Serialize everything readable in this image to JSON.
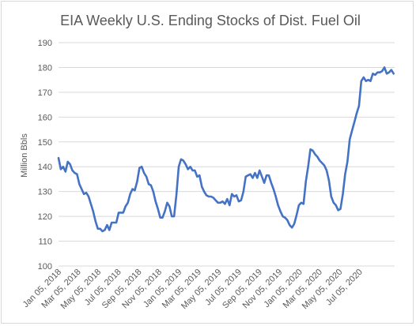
{
  "chart_data": {
    "type": "line",
    "title": "EIA Weekly U.S. Ending Stocks of Dist. Fuel Oil",
    "ylabel": "Million Bbls",
    "xlabel": "",
    "ylim": [
      100,
      190
    ],
    "yticks": [
      100,
      110,
      120,
      130,
      140,
      150,
      160,
      170,
      180,
      190
    ],
    "xticks": [
      {
        "label": "Jan 05, 2018",
        "date": "2018-01-05"
      },
      {
        "label": "Mar 05, 2018",
        "date": "2018-03-05"
      },
      {
        "label": "May 05, 2018",
        "date": "2018-05-05"
      },
      {
        "label": "Jul 05, 2018",
        "date": "2018-07-05"
      },
      {
        "label": "Sep 05, 2018",
        "date": "2018-09-05"
      },
      {
        "label": "Nov 05, 2018",
        "date": "2018-11-05"
      },
      {
        "label": "Jan 05, 2019",
        "date": "2019-01-05"
      },
      {
        "label": "Mar 05, 2019",
        "date": "2019-03-05"
      },
      {
        "label": "May 05, 2019",
        "date": "2019-05-05"
      },
      {
        "label": "Jul 05, 2019",
        "date": "2019-07-05"
      },
      {
        "label": "Sep 05, 2019",
        "date": "2019-09-05"
      },
      {
        "label": "Nov 05, 2019",
        "date": "2019-11-05"
      },
      {
        "label": "Jan 05, 2020",
        "date": "2020-01-05"
      },
      {
        "label": "Mar 05, 2020",
        "date": "2020-03-05"
      },
      {
        "label": "May 05, 2020",
        "date": "2020-05-05"
      },
      {
        "label": "Jul 05, 2020",
        "date": "2020-07-05"
      }
    ],
    "grid": true,
    "series": [
      {
        "color": "#4472c4",
        "points": [
          [
            "2018-01-05",
            143.5
          ],
          [
            "2018-01-12",
            139.0
          ],
          [
            "2018-01-19",
            140.0
          ],
          [
            "2018-01-26",
            138.0
          ],
          [
            "2018-02-02",
            142.0
          ],
          [
            "2018-02-09",
            141.0
          ],
          [
            "2018-02-16",
            138.5
          ],
          [
            "2018-02-23",
            137.5
          ],
          [
            "2018-03-02",
            137.0
          ],
          [
            "2018-03-09",
            133.0
          ],
          [
            "2018-03-16",
            131.0
          ],
          [
            "2018-03-23",
            129.0
          ],
          [
            "2018-03-30",
            129.5
          ],
          [
            "2018-04-06",
            128.0
          ],
          [
            "2018-04-13",
            125.0
          ],
          [
            "2018-04-20",
            122.0
          ],
          [
            "2018-04-27",
            118.0
          ],
          [
            "2018-05-04",
            115.0
          ],
          [
            "2018-05-11",
            115.0
          ],
          [
            "2018-05-18",
            114.0
          ],
          [
            "2018-05-25",
            114.5
          ],
          [
            "2018-06-01",
            116.5
          ],
          [
            "2018-06-08",
            114.5
          ],
          [
            "2018-06-15",
            117.5
          ],
          [
            "2018-06-22",
            117.5
          ],
          [
            "2018-06-29",
            117.5
          ],
          [
            "2018-07-06",
            121.5
          ],
          [
            "2018-07-13",
            121.5
          ],
          [
            "2018-07-20",
            121.5
          ],
          [
            "2018-07-27",
            124.0
          ],
          [
            "2018-08-03",
            125.5
          ],
          [
            "2018-08-10",
            129.0
          ],
          [
            "2018-08-17",
            131.0
          ],
          [
            "2018-08-24",
            130.5
          ],
          [
            "2018-08-31",
            134.0
          ],
          [
            "2018-09-07",
            139.5
          ],
          [
            "2018-09-14",
            140.0
          ],
          [
            "2018-09-21",
            137.5
          ],
          [
            "2018-09-28",
            136.0
          ],
          [
            "2018-10-05",
            133.0
          ],
          [
            "2018-10-12",
            132.5
          ],
          [
            "2018-10-19",
            130.0
          ],
          [
            "2018-10-26",
            126.0
          ],
          [
            "2018-11-02",
            123.0
          ],
          [
            "2018-11-09",
            119.5
          ],
          [
            "2018-11-16",
            119.5
          ],
          [
            "2018-11-23",
            122.0
          ],
          [
            "2018-11-30",
            125.5
          ],
          [
            "2018-12-07",
            124.0
          ],
          [
            "2018-12-14",
            120.0
          ],
          [
            "2018-12-21",
            120.0
          ],
          [
            "2018-12-28",
            128.5
          ],
          [
            "2019-01-04",
            140.0
          ],
          [
            "2019-01-11",
            143.0
          ],
          [
            "2019-01-18",
            142.5
          ],
          [
            "2019-01-25",
            141.0
          ],
          [
            "2019-02-01",
            139.0
          ],
          [
            "2019-02-08",
            140.0
          ],
          [
            "2019-02-15",
            138.5
          ],
          [
            "2019-02-22",
            138.5
          ],
          [
            "2019-03-01",
            136.0
          ],
          [
            "2019-03-08",
            136.5
          ],
          [
            "2019-03-15",
            132.0
          ],
          [
            "2019-03-22",
            130.0
          ],
          [
            "2019-03-29",
            128.5
          ],
          [
            "2019-04-05",
            128.0
          ],
          [
            "2019-04-12",
            128.0
          ],
          [
            "2019-04-19",
            127.5
          ],
          [
            "2019-04-26",
            126.5
          ],
          [
            "2019-05-03",
            125.5
          ],
          [
            "2019-05-10",
            125.5
          ],
          [
            "2019-05-17",
            126.0
          ],
          [
            "2019-05-24",
            125.0
          ],
          [
            "2019-05-31",
            127.0
          ],
          [
            "2019-06-07",
            124.5
          ],
          [
            "2019-06-14",
            129.0
          ],
          [
            "2019-06-21",
            128.0
          ],
          [
            "2019-06-28",
            128.5
          ],
          [
            "2019-07-05",
            126.0
          ],
          [
            "2019-07-12",
            126.5
          ],
          [
            "2019-07-19",
            130.0
          ],
          [
            "2019-07-26",
            136.0
          ],
          [
            "2019-08-02",
            136.5
          ],
          [
            "2019-08-09",
            137.0
          ],
          [
            "2019-08-16",
            135.5
          ],
          [
            "2019-08-23",
            137.5
          ],
          [
            "2019-08-30",
            135.5
          ],
          [
            "2019-09-06",
            138.5
          ],
          [
            "2019-09-13",
            136.0
          ],
          [
            "2019-09-20",
            133.5
          ],
          [
            "2019-09-27",
            136.5
          ],
          [
            "2019-10-04",
            136.5
          ],
          [
            "2019-10-11",
            133.5
          ],
          [
            "2019-10-18",
            131.0
          ],
          [
            "2019-10-25",
            128.0
          ],
          [
            "2019-11-01",
            124.5
          ],
          [
            "2019-11-08",
            122.0
          ],
          [
            "2019-11-15",
            120.0
          ],
          [
            "2019-11-22",
            119.5
          ],
          [
            "2019-11-29",
            118.5
          ],
          [
            "2019-12-06",
            116.5
          ],
          [
            "2019-12-13",
            115.5
          ],
          [
            "2019-12-20",
            117.0
          ],
          [
            "2019-12-27",
            120.5
          ],
          [
            "2020-01-03",
            124.5
          ],
          [
            "2020-01-10",
            125.5
          ],
          [
            "2020-01-17",
            125.0
          ],
          [
            "2020-01-24",
            134.0
          ],
          [
            "2020-01-31",
            140.0
          ],
          [
            "2020-02-07",
            147.0
          ],
          [
            "2020-02-14",
            146.5
          ],
          [
            "2020-02-21",
            145.0
          ],
          [
            "2020-02-28",
            144.0
          ],
          [
            "2020-03-06",
            142.5
          ],
          [
            "2020-03-13",
            141.5
          ],
          [
            "2020-03-20",
            140.5
          ],
          [
            "2020-03-27",
            138.5
          ],
          [
            "2020-04-03",
            134.5
          ],
          [
            "2020-04-10",
            128.0
          ],
          [
            "2020-04-17",
            125.5
          ],
          [
            "2020-04-24",
            124.5
          ],
          [
            "2020-05-01",
            122.5
          ],
          [
            "2020-05-08",
            123.0
          ],
          [
            "2020-05-15",
            129.0
          ],
          [
            "2020-05-22",
            137.0
          ],
          [
            "2020-05-29",
            142.0
          ],
          [
            "2020-06-05",
            151.0
          ],
          [
            "2020-06-12",
            154.5
          ],
          [
            "2020-06-19",
            158.0
          ],
          [
            "2020-06-26",
            161.5
          ],
          [
            "2020-07-03",
            164.5
          ],
          [
            "2020-07-10",
            174.5
          ],
          [
            "2020-07-17",
            176.0
          ],
          [
            "2020-07-24",
            174.5
          ],
          [
            "2020-07-31",
            175.0
          ],
          [
            "2020-08-07",
            174.5
          ],
          [
            "2020-08-14",
            177.5
          ],
          [
            "2020-08-21",
            177.0
          ],
          [
            "2020-08-28",
            178.0
          ],
          [
            "2020-09-04",
            178.0
          ],
          [
            "2020-09-11",
            178.5
          ],
          [
            "2020-09-18",
            180.0
          ],
          [
            "2020-09-25",
            177.5
          ],
          [
            "2020-10-02",
            178.0
          ],
          [
            "2020-10-09",
            179.0
          ],
          [
            "2020-10-16",
            177.5
          ]
        ]
      }
    ]
  }
}
